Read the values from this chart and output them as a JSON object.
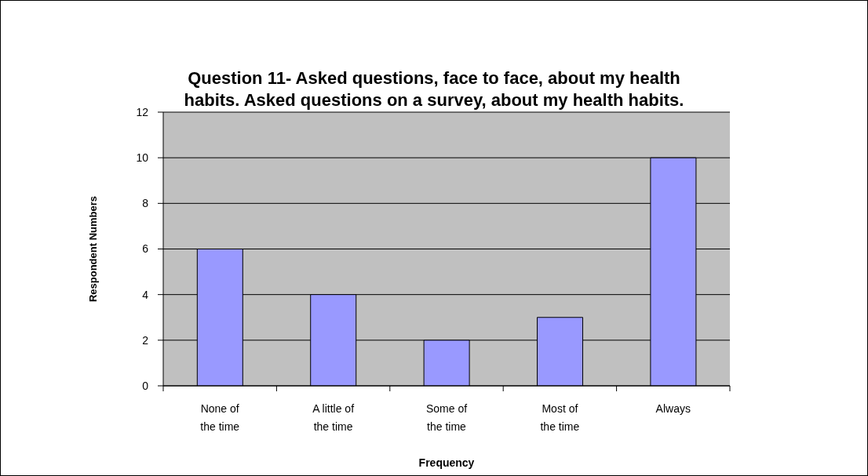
{
  "chart_data": {
    "type": "bar",
    "title": "Question 11- Asked questions, face to face, about my health habits. Asked questions on a survey, about my health habits.",
    "xlabel": "Frequency",
    "ylabel": "Respondent Numbers",
    "categories": [
      "None of the time",
      "A little of the time",
      "Some of the time",
      "Most of the time",
      "Always"
    ],
    "values": [
      6,
      4,
      2,
      3,
      10
    ],
    "color": "#9999ff",
    "ylim": [
      0,
      12
    ],
    "yticks": [
      0,
      2,
      4,
      6,
      8,
      10,
      12
    ],
    "grid": "y"
  }
}
